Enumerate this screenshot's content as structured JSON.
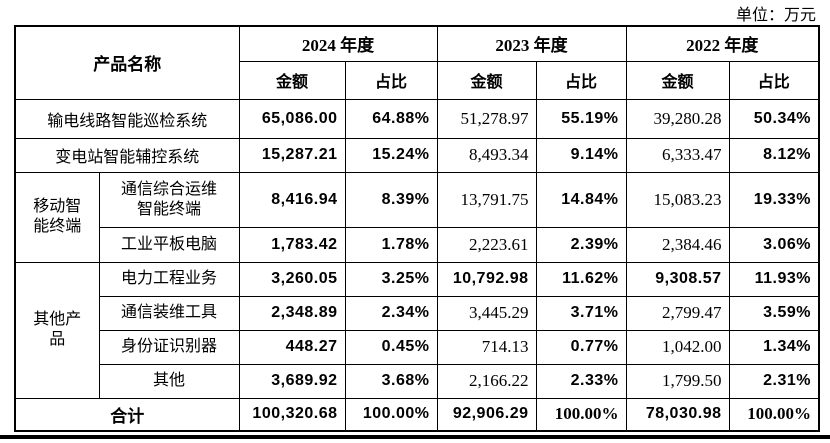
{
  "unit_label": "单位：万元",
  "table": {
    "product_header": "产品名称",
    "year_groups": [
      {
        "label": "2024 年度"
      },
      {
        "label": "2023 年度"
      },
      {
        "label": "2022 年度"
      }
    ],
    "sub_headers": {
      "amount": "金额",
      "ratio": "占比"
    },
    "rows": [
      {
        "name": "输电线路智能巡检系统",
        "wide": true,
        "cells": [
          {
            "v": "65,086.00",
            "s": "bs"
          },
          {
            "v": "64.88%",
            "s": "bs"
          },
          {
            "v": "51,278.97",
            "s": "sr"
          },
          {
            "v": "55.19%",
            "s": "bs"
          },
          {
            "v": "39,280.28",
            "s": "sr"
          },
          {
            "v": "50.34%",
            "s": "bs"
          }
        ]
      },
      {
        "name": "变电站智能辅控系统",
        "wide": true,
        "cells": [
          {
            "v": "15,287.21",
            "s": "bs"
          },
          {
            "v": "15.24%",
            "s": "bs"
          },
          {
            "v": "8,493.34",
            "s": "sr"
          },
          {
            "v": "9.14%",
            "s": "bs"
          },
          {
            "v": "6,333.47",
            "s": "sr"
          },
          {
            "v": "8.12%",
            "s": "bs"
          }
        ]
      },
      {
        "group": {
          "label": "移动智能终端",
          "span": 2
        },
        "name": "通信综合运维智能终端",
        "wide": false,
        "cells": [
          {
            "v": "8,416.94",
            "s": "bs"
          },
          {
            "v": "8.39%",
            "s": "bs"
          },
          {
            "v": "13,791.75",
            "s": "sr"
          },
          {
            "v": "14.84%",
            "s": "bs"
          },
          {
            "v": "15,083.23",
            "s": "sr"
          },
          {
            "v": "19.33%",
            "s": "bs"
          }
        ]
      },
      {
        "name": "工业平板电脑",
        "wide": false,
        "cells": [
          {
            "v": "1,783.42",
            "s": "bs"
          },
          {
            "v": "1.78%",
            "s": "bs"
          },
          {
            "v": "2,223.61",
            "s": "sr"
          },
          {
            "v": "2.39%",
            "s": "bs"
          },
          {
            "v": "2,384.46",
            "s": "sr"
          },
          {
            "v": "3.06%",
            "s": "bs"
          }
        ]
      },
      {
        "group": {
          "label": "其他产品",
          "span": 4
        },
        "name": "电力工程业务",
        "wide": false,
        "cells": [
          {
            "v": "3,260.05",
            "s": "bs"
          },
          {
            "v": "3.25%",
            "s": "bs"
          },
          {
            "v": "10,792.98",
            "s": "bs"
          },
          {
            "v": "11.62%",
            "s": "bs"
          },
          {
            "v": "9,308.57",
            "s": "bs"
          },
          {
            "v": "11.93%",
            "s": "bs"
          }
        ]
      },
      {
        "name": "通信装维工具",
        "wide": false,
        "cells": [
          {
            "v": "2,348.89",
            "s": "bs"
          },
          {
            "v": "2.34%",
            "s": "bs"
          },
          {
            "v": "3,445.29",
            "s": "sr"
          },
          {
            "v": "3.71%",
            "s": "bs"
          },
          {
            "v": "2,799.47",
            "s": "sr"
          },
          {
            "v": "3.59%",
            "s": "bs"
          }
        ]
      },
      {
        "name": "身份证识别器",
        "wide": false,
        "cells": [
          {
            "v": "448.27",
            "s": "bs"
          },
          {
            "v": "0.45%",
            "s": "bs"
          },
          {
            "v": "714.13",
            "s": "sr"
          },
          {
            "v": "0.77%",
            "s": "bs"
          },
          {
            "v": "1,042.00",
            "s": "sr"
          },
          {
            "v": "1.34%",
            "s": "bs"
          }
        ]
      },
      {
        "name": "其他",
        "wide": false,
        "cells": [
          {
            "v": "3,689.92",
            "s": "bs"
          },
          {
            "v": "3.68%",
            "s": "bs"
          },
          {
            "v": "2,166.22",
            "s": "sr"
          },
          {
            "v": "2.33%",
            "s": "bs"
          },
          {
            "v": "1,799.50",
            "s": "sr"
          },
          {
            "v": "2.31%",
            "s": "bs"
          }
        ]
      }
    ],
    "total_row": {
      "label": "合计",
      "cells": [
        {
          "v": "100,320.68",
          "s": "bs"
        },
        {
          "v": "100.00%",
          "s": "bs"
        },
        {
          "v": "92,906.29",
          "s": "bs"
        },
        {
          "v": "100.00%",
          "s": "bsr"
        },
        {
          "v": "78,030.98",
          "s": "bs"
        },
        {
          "v": "100.00%",
          "s": "bsr"
        }
      ]
    }
  }
}
